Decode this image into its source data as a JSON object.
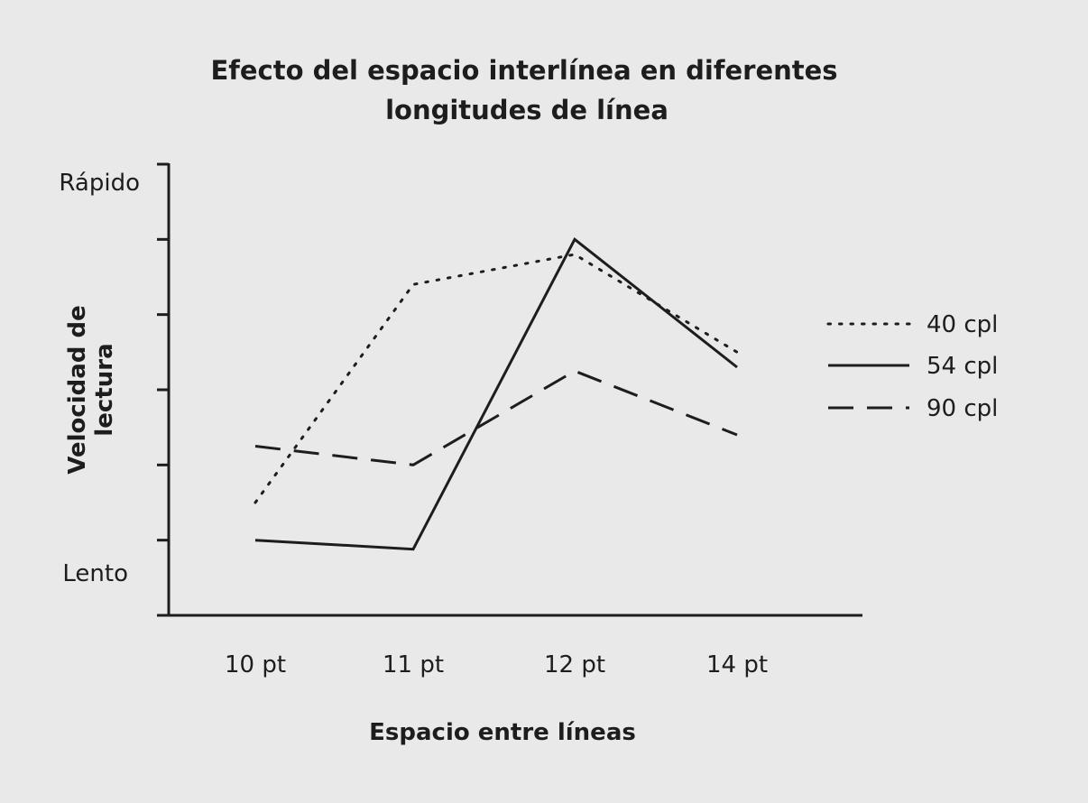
{
  "chart_data": {
    "type": "line",
    "title": "Efecto del espacio interlínea en diferentes longitudes de línea",
    "title_lines": [
      "Efecto del espacio interlínea en diferentes",
      "longitudes de línea"
    ],
    "xlabel": "Espacio entre líneas",
    "ylabel": "Velocidad de lectura",
    "ylabel_lines": [
      "Velocidad de",
      "lectura"
    ],
    "categories": [
      "10 pt",
      "11 pt",
      "12 pt",
      "14 pt"
    ],
    "ytick_labels": {
      "top": "Rápido",
      "bottom": "Lento"
    },
    "ylim": [
      0,
      6
    ],
    "y_ticks": [
      1,
      2,
      3,
      4,
      5,
      6
    ],
    "grid": false,
    "legend_position": "right",
    "series": [
      {
        "name": "40 cpl",
        "style": "dotted",
        "color": "#1d1d1d",
        "values": [
          1.5,
          4.4,
          4.8,
          3.5
        ]
      },
      {
        "name": "54 cpl",
        "style": "solid",
        "color": "#1d1d1d",
        "values": [
          1.0,
          0.88,
          5.0,
          3.3
        ]
      },
      {
        "name": "90 cpl",
        "style": "dashed",
        "color": "#1d1d1d",
        "values": [
          2.25,
          2.0,
          3.25,
          2.4
        ]
      }
    ]
  }
}
